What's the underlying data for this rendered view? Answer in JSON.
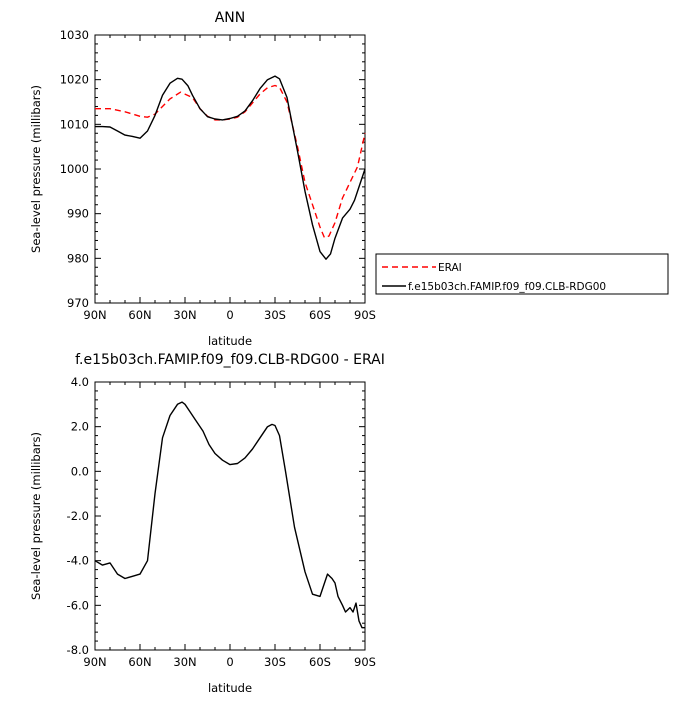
{
  "chart_data": [
    {
      "type": "line",
      "title": "ANN",
      "xlabel": "latitude",
      "ylabel": "Sea-level pressure (millibars)",
      "xlim": [
        90,
        -90
      ],
      "ylim": [
        970,
        1030
      ],
      "xticks": [
        90,
        60,
        30,
        0,
        -30,
        -60,
        -90
      ],
      "xtick_labels": [
        "90N",
        "60N",
        "30N",
        "0",
        "30S",
        "60S",
        "90S"
      ],
      "yticks": [
        970,
        980,
        990,
        1000,
        1010,
        1020,
        1030
      ],
      "ytick_labels": [
        "970",
        "980",
        "990",
        "1000",
        "1010",
        "1020",
        "1030"
      ],
      "legend_position": "right",
      "series": [
        {
          "name": "ERAI",
          "color": "#ff0000",
          "dash": "dashed",
          "x": [
            90,
            80,
            70,
            60,
            55,
            50,
            40,
            33,
            25,
            20,
            15,
            10,
            5,
            0,
            -5,
            -10,
            -15,
            -20,
            -25,
            -30,
            -33,
            -38,
            -45,
            -50,
            -55,
            -60,
            -63,
            -66,
            -70,
            -75,
            -80,
            -85,
            -90
          ],
          "y": [
            1013.5,
            1013.5,
            1012.8,
            1011.8,
            1011.6,
            1012.3,
            1015.7,
            1017.2,
            1016.0,
            1013.5,
            1011.8,
            1011.0,
            1011.0,
            1011.2,
            1011.6,
            1012.8,
            1014.8,
            1016.8,
            1018.2,
            1018.7,
            1018.3,
            1015.0,
            1005.0,
            997.0,
            992.0,
            987.0,
            984.6,
            985.0,
            988.0,
            993.5,
            997.0,
            1000.5,
            1008.0
          ]
        },
        {
          "name": "f.e15b03ch.FAMIP.f09_f09.CLB-RDG00",
          "color": "#000000",
          "dash": "solid",
          "x": [
            90,
            85,
            80,
            75,
            70,
            65,
            60,
            55,
            50,
            45,
            40,
            35,
            32,
            28,
            25,
            20,
            15,
            10,
            5,
            0,
            -5,
            -10,
            -15,
            -20,
            -25,
            -30,
            -33,
            -38,
            -45,
            -50,
            -55,
            -60,
            -64,
            -67,
            -70,
            -75,
            -80,
            -83,
            -86,
            -90
          ],
          "y": [
            1009.5,
            1009.5,
            1009.4,
            1008.5,
            1007.6,
            1007.3,
            1006.9,
            1008.5,
            1012.0,
            1016.5,
            1019.2,
            1020.3,
            1020.1,
            1018.6,
            1016.5,
            1013.5,
            1011.7,
            1011.2,
            1011.0,
            1011.3,
            1011.8,
            1013.0,
            1015.3,
            1018.0,
            1020.0,
            1020.8,
            1020.2,
            1016.0,
            1004.0,
            995.0,
            987.5,
            981.5,
            979.8,
            981.0,
            984.5,
            989.0,
            991.0,
            993.0,
            996.0,
            1000.0
          ]
        }
      ]
    },
    {
      "type": "line",
      "title": "f.e15b03ch.FAMIP.f09_f09.CLB-RDG00  -  ERAI",
      "xlabel": "latitude",
      "ylabel": "Sea-level pressure (millibars)",
      "xlim": [
        90,
        -90
      ],
      "ylim": [
        -8,
        4
      ],
      "xticks": [
        90,
        60,
        30,
        0,
        -30,
        -60,
        -90
      ],
      "xtick_labels": [
        "90N",
        "60N",
        "30N",
        "0",
        "30S",
        "60S",
        "90S"
      ],
      "yticks": [
        -8,
        -6,
        -4,
        -2,
        0,
        2,
        4
      ],
      "ytick_labels": [
        "-8.0",
        "-6.0",
        "-4.0",
        "-2.0",
        "0.0",
        "2.0",
        "4.0"
      ],
      "series": [
        {
          "name": "",
          "color": "#000000",
          "dash": "solid",
          "x": [
            90,
            85,
            80,
            75,
            70,
            65,
            60,
            55,
            50,
            45,
            40,
            35,
            32,
            30,
            27,
            23,
            18,
            14,
            10,
            5,
            0,
            -5,
            -10,
            -15,
            -20,
            -25,
            -28,
            -30,
            -33,
            -37,
            -43,
            -50,
            -55,
            -60,
            -63,
            -65,
            -68,
            -70,
            -72,
            -75,
            -77,
            -80,
            -82,
            -84,
            -86,
            -88,
            -90
          ],
          "y": [
            -4.0,
            -4.2,
            -4.1,
            -4.6,
            -4.8,
            -4.7,
            -4.6,
            -4.0,
            -1.0,
            1.5,
            2.5,
            3.0,
            3.1,
            3.0,
            2.7,
            2.3,
            1.8,
            1.2,
            0.8,
            0.5,
            0.3,
            0.35,
            0.6,
            1.0,
            1.5,
            2.0,
            2.1,
            2.05,
            1.6,
            0.0,
            -2.5,
            -4.5,
            -5.5,
            -5.6,
            -5.0,
            -4.6,
            -4.8,
            -5.0,
            -5.6,
            -6.0,
            -6.3,
            -6.1,
            -6.3,
            -5.9,
            -6.7,
            -7.0,
            -7.0
          ]
        }
      ]
    }
  ]
}
